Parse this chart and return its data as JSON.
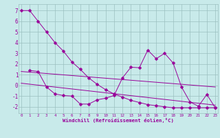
{
  "xlabel": "Windchill (Refroidissement éolien,°C)",
  "bg_color": "#c8eaea",
  "grid_color": "#9bbfbf",
  "line_color": "#990099",
  "x_ticks": [
    0,
    1,
    2,
    3,
    4,
    5,
    6,
    7,
    8,
    9,
    10,
    11,
    12,
    13,
    14,
    15,
    16,
    17,
    18,
    19,
    20,
    21,
    22,
    23
  ],
  "y_ticks": [
    -2,
    -1,
    0,
    1,
    2,
    3,
    4,
    5,
    6,
    7
  ],
  "ylim": [
    -2.6,
    7.6
  ],
  "xlim": [
    -0.3,
    23.3
  ],
  "series": [
    {
      "x": [
        0,
        1,
        2,
        3,
        4,
        5,
        6,
        7,
        8,
        9,
        10,
        11,
        12,
        13,
        14,
        15,
        16,
        17,
        18,
        19,
        20,
        21,
        22,
        23
      ],
      "y": [
        7.0,
        7.0,
        6.0,
        5.0,
        4.0,
        3.2,
        2.2,
        1.5,
        0.7,
        0.1,
        -0.4,
        -0.8,
        -1.1,
        -1.4,
        -1.6,
        -1.8,
        -1.9,
        -2.0,
        -2.1,
        -2.1,
        -2.1,
        -2.1,
        -2.1,
        -2.1
      ],
      "marker": "D",
      "markersize": 2.5
    },
    {
      "x": [
        1,
        2,
        3,
        4,
        5,
        6,
        7,
        8,
        9,
        10,
        11,
        12,
        13,
        14,
        15,
        16,
        17,
        18,
        19,
        20,
        21,
        22,
        23
      ],
      "y": [
        1.4,
        1.3,
        -0.15,
        -0.8,
        -0.95,
        -1.0,
        -1.75,
        -1.75,
        -1.35,
        -1.2,
        -0.95,
        0.7,
        1.7,
        1.65,
        3.3,
        2.5,
        3.0,
        2.1,
        -0.15,
        -1.55,
        -1.95,
        -0.85,
        -2.1
      ],
      "marker": "D",
      "markersize": 2.5
    },
    {
      "x": [
        0,
        23
      ],
      "y": [
        1.3,
        -0.15
      ],
      "marker": null,
      "markersize": 0
    },
    {
      "x": [
        0,
        23
      ],
      "y": [
        0.2,
        -1.85
      ],
      "marker": null,
      "markersize": 0
    }
  ]
}
